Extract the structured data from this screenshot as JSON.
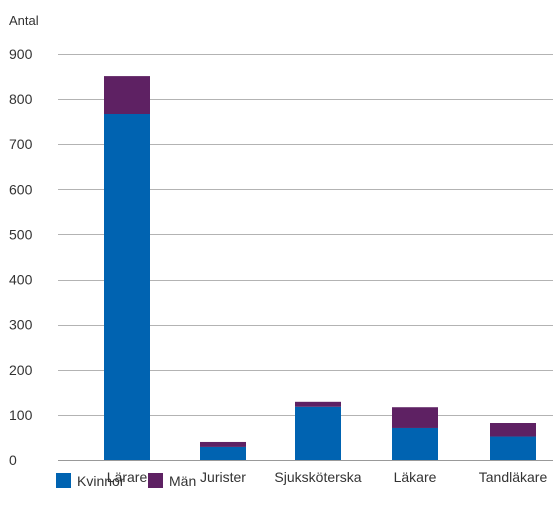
{
  "chart_data": {
    "type": "bar",
    "stacked": true,
    "ylabel": "Antal",
    "xlabel": "",
    "ylim": [
      0,
      900
    ],
    "yticks": [
      0,
      100,
      200,
      300,
      400,
      500,
      600,
      700,
      800,
      900
    ],
    "grid": true,
    "legend_position": "bottom-left",
    "categories": [
      "Lärare",
      "Jurister",
      "Sjuksköterska",
      "Läkare",
      "Tandläkare"
    ],
    "series": [
      {
        "name": "Kvinnor",
        "color": "#0063b1",
        "values": [
          767,
          29,
          118,
          71,
          52
        ]
      },
      {
        "name": "Män",
        "color": "#5e2163",
        "values": [
          84,
          11,
          11,
          46,
          30
        ]
      }
    ]
  }
}
